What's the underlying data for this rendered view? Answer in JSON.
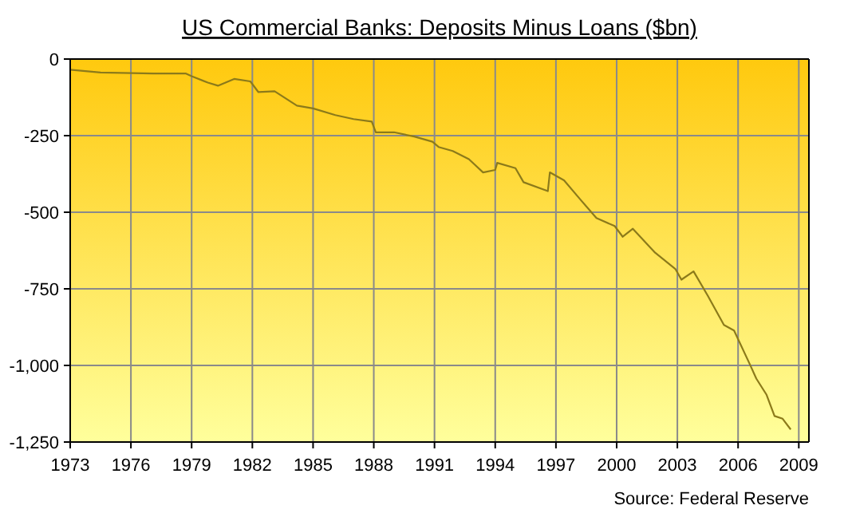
{
  "chart_data": {
    "type": "line",
    "title": "US Commercial Banks: Deposits Minus Loans ($bn)",
    "annotations": [
      "Source: Federal Reserve"
    ],
    "x": [
      1973,
      1974.5,
      1977.1,
      1978.7,
      1979.0,
      1979.8,
      1980.3,
      1981.1,
      1981.9,
      1982.3,
      1983.1,
      1984.2,
      1985.0,
      1986.1,
      1987.0,
      1987.9,
      1988.1,
      1989.0,
      1990.0,
      1990.9,
      1991.2,
      1991.9,
      1992.7,
      1993.4,
      1994.0,
      1994.1,
      1995.0,
      1995.4,
      1996.6,
      1996.7,
      1997.4,
      1998.2,
      1999.0,
      1999.9,
      2000.3,
      2000.8,
      2001.9,
      2002.9,
      2003.2,
      2003.8,
      2004.5,
      2005.3,
      2005.8,
      2006.6,
      2006.9,
      2007.4,
      2007.8,
      2008.2,
      2008.6
    ],
    "series": [
      {
        "color": "#8c7a1a",
        "values": [
          -35,
          -44,
          -47,
          -47,
          -56,
          -77,
          -87,
          -65,
          -73,
          -108,
          -105,
          -152,
          -161,
          -183,
          -196,
          -204,
          -239,
          -239,
          -253,
          -270,
          -287,
          -300,
          -327,
          -370,
          -362,
          -339,
          -356,
          -402,
          -431,
          -370,
          -396,
          -458,
          -519,
          -545,
          -580,
          -554,
          -632,
          -685,
          -720,
          -693,
          -772,
          -868,
          -886,
          -999,
          -1043,
          -1095,
          -1165,
          -1174,
          -1209
        ]
      }
    ],
    "xlim": [
      1973,
      2009.5
    ],
    "xticks": [
      1973,
      1976,
      1979,
      1982,
      1985,
      1988,
      1991,
      1994,
      1997,
      2000,
      2003,
      2006,
      2009
    ],
    "ylim": [
      -1250,
      0
    ],
    "yticks": [
      {
        "value": 0,
        "label": "0"
      },
      {
        "value": -250,
        "label": "-250"
      },
      {
        "value": -500,
        "label": "-500"
      },
      {
        "value": -750,
        "label": "-750"
      },
      {
        "value": -1000,
        "label": "-1,000"
      },
      {
        "value": -1250,
        "label": "-1,250"
      }
    ],
    "grid": true,
    "marker": "none",
    "line_style": "solid"
  }
}
